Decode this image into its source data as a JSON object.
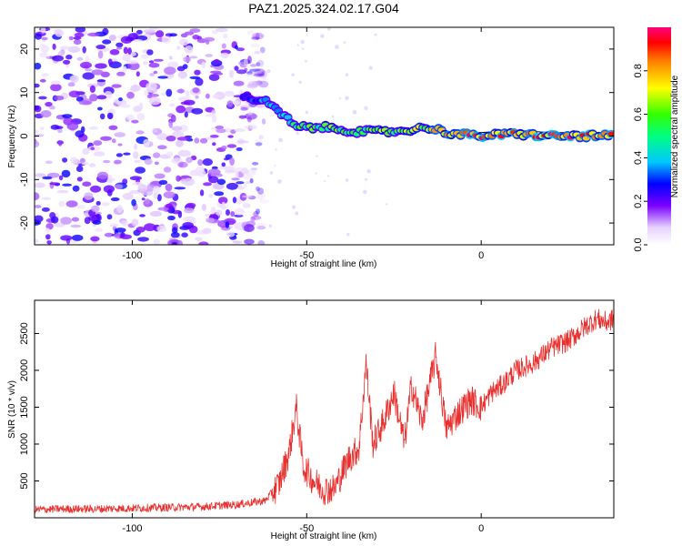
{
  "title": "PAZ1.2025.324.02.17.G04",
  "chart_data": [
    {
      "type": "heatmap",
      "title": "PAZ1.2025.324.02.17.G04",
      "xlabel": "Height of straight line (km)",
      "ylabel": "Frequency (Hz)",
      "xlim": [
        -128,
        38
      ],
      "ylim": [
        -25,
        25
      ],
      "xticks": [
        -100,
        -50,
        0
      ],
      "yticks": [
        -20,
        -10,
        0,
        10,
        20
      ],
      "colorbar": {
        "label": "Normalized spectral amplitude",
        "range": [
          0.0,
          1.0
        ],
        "ticks": [
          "0.0",
          "0.2",
          "0.4",
          "0.6",
          "0.8"
        ],
        "colormap": "white-purple-blue-cyan-green-yellow-red-magenta"
      },
      "ridge": {
        "description_points_x": [
          -68,
          -62,
          -57,
          -53,
          -45,
          -35,
          -25,
          -15,
          -8,
          0,
          10,
          20,
          38
        ],
        "description_points_y": [
          9,
          8,
          5,
          2,
          2,
          1,
          1,
          2,
          0.5,
          0,
          0.5,
          0,
          0
        ],
        "amplitude": [
          0.3,
          0.35,
          0.45,
          0.55,
          0.6,
          0.6,
          0.65,
          0.7,
          0.9,
          0.9,
          0.9,
          0.9,
          0.9
        ]
      },
      "noise_region_x": [
        -128,
        -62
      ]
    },
    {
      "type": "line",
      "xlabel": "Height of straight line (km)",
      "ylabel": "SNR (10 * v/v)",
      "xlim": [
        -128,
        38
      ],
      "ylim": [
        0,
        2950
      ],
      "xticks": [
        -100,
        -50,
        0
      ],
      "yticks": [
        500,
        1000,
        1500,
        2000,
        2500
      ],
      "color": "#e8312f",
      "series": [
        {
          "x": [
            -128,
            -120,
            -110,
            -100,
            -90,
            -80,
            -70,
            -62,
            -58,
            -55,
            -53,
            -51,
            -48,
            -45,
            -42,
            -38,
            -35,
            -33,
            -31,
            -28,
            -25,
            -22,
            -20,
            -17,
            -13,
            -10,
            -7,
            -5,
            -3,
            0,
            3,
            6,
            10,
            15,
            20,
            25,
            30,
            33,
            36,
            38
          ],
          "values": [
            110,
            120,
            120,
            130,
            140,
            150,
            180,
            230,
            450,
            900,
            1500,
            700,
            500,
            380,
            400,
            800,
            950,
            2100,
            1000,
            1300,
            1700,
            1000,
            1800,
            1300,
            2200,
            1200,
            1400,
            1500,
            1600,
            1500,
            1700,
            1800,
            2000,
            2100,
            2300,
            2400,
            2600,
            2700,
            2650,
            2700
          ]
        }
      ]
    }
  ]
}
